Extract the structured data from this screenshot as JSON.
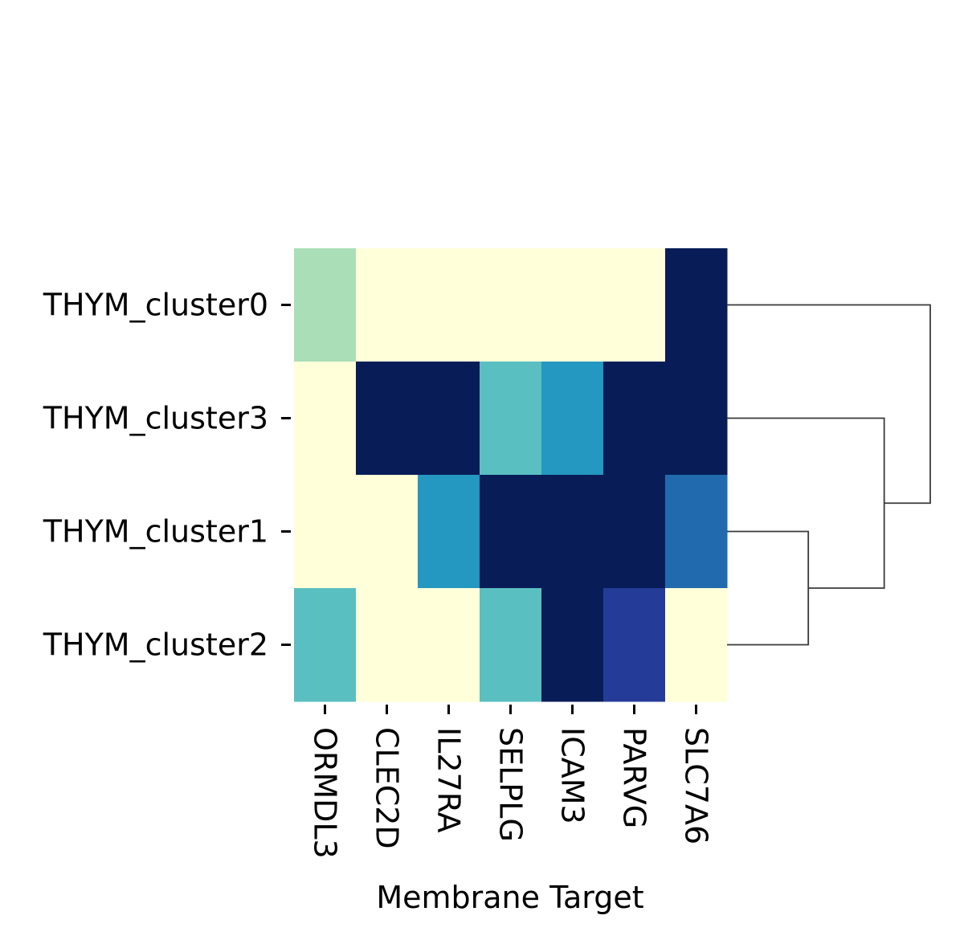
{
  "chart_data": {
    "type": "heatmap",
    "xlabel": "Membrane Target",
    "ylabel": "",
    "columns": [
      "ORMDL3",
      "CLEC2D",
      "IL27RA",
      "SELPLG",
      "ICAM3",
      "PARVG",
      "SLC7A6"
    ],
    "rows": [
      "THYM_cluster0",
      "THYM_cluster3",
      "THYM_cluster1",
      "THYM_cluster2"
    ],
    "colormap": "YlGnBu",
    "color_range": [
      0,
      1
    ],
    "values": [
      [
        0.3,
        0.0,
        0.0,
        0.0,
        0.0,
        0.0,
        1.0
      ],
      [
        0.0,
        1.0,
        1.0,
        0.45,
        0.6,
        1.0,
        1.0
      ],
      [
        0.0,
        0.0,
        0.6,
        1.0,
        1.0,
        1.0,
        0.72
      ],
      [
        0.45,
        0.0,
        0.0,
        0.45,
        1.0,
        0.85,
        0.0
      ]
    ],
    "colorbar": false,
    "dendrogram": {
      "side": "right",
      "merges": [
        {
          "left": "THYM_cluster1",
          "right": "THYM_cluster2",
          "height": 0.3
        },
        {
          "left": "THYM_cluster3",
          "right": "merge-0",
          "height": 0.58
        },
        {
          "left": "THYM_cluster0",
          "right": "merge-1",
          "height": 0.75
        }
      ]
    }
  }
}
